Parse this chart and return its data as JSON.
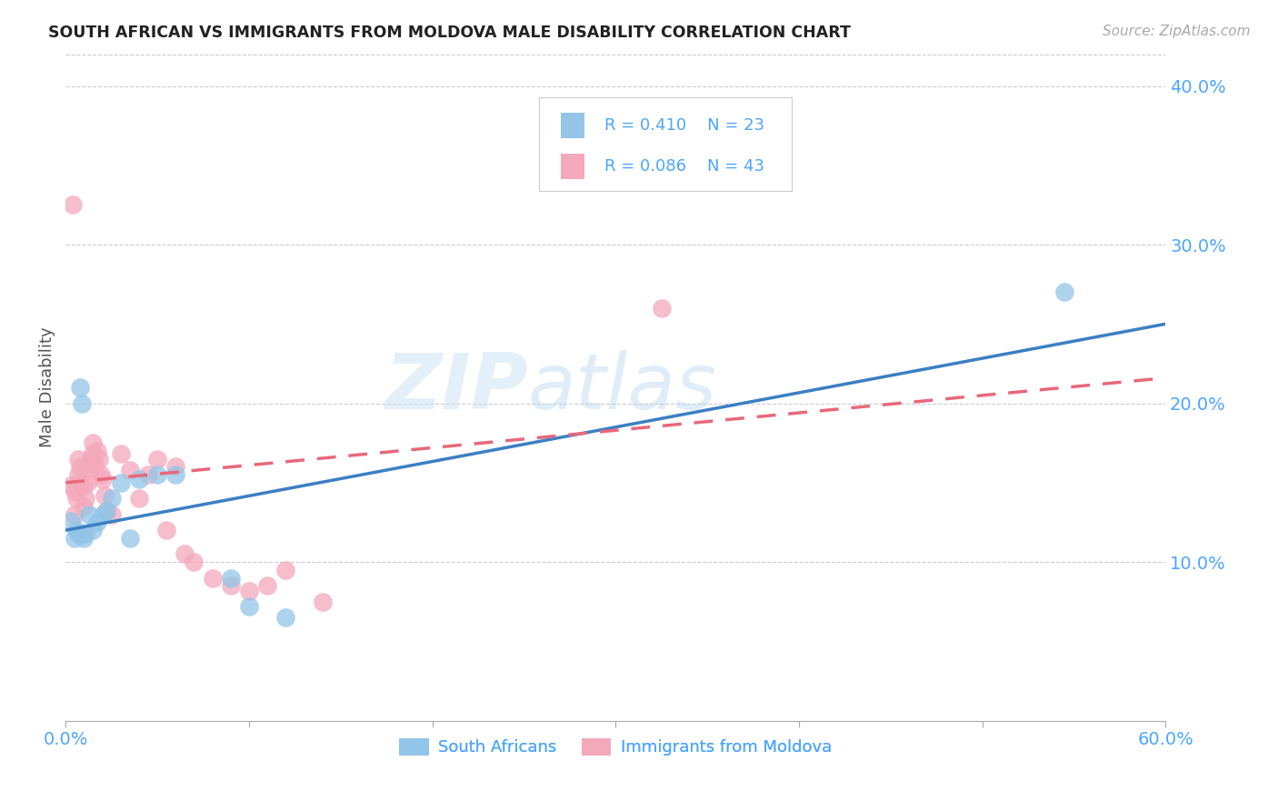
{
  "title": "SOUTH AFRICAN VS IMMIGRANTS FROM MOLDOVA MALE DISABILITY CORRELATION CHART",
  "source": "Source: ZipAtlas.com",
  "ylabel": "Male Disability",
  "legend_label1": "South Africans",
  "legend_label2": "Immigrants from Moldova",
  "legend_r1": "R = 0.410",
  "legend_n1": "N = 23",
  "legend_r2": "R = 0.086",
  "legend_n2": "N = 43",
  "xlim": [
    0.0,
    0.6
  ],
  "ylim": [
    0.0,
    0.42
  ],
  "x_ticks": [
    0.0,
    0.1,
    0.2,
    0.3,
    0.4,
    0.5,
    0.6
  ],
  "y_ticks": [
    0.1,
    0.2,
    0.3,
    0.4
  ],
  "color_blue": "#92C5E8",
  "color_pink": "#F4A8BC",
  "color_blue_line": "#3B7FC4",
  "color_pink_line": "#E8687A",
  "color_axis_labels": "#4da6ff",
  "watermark_zip": "ZIP",
  "watermark_atlas": "atlas",
  "blue_x": [
    0.003,
    0.005,
    0.006,
    0.007,
    0.008,
    0.009,
    0.01,
    0.011,
    0.013,
    0.015,
    0.017,
    0.02,
    0.022,
    0.025,
    0.03,
    0.035,
    0.04,
    0.05,
    0.06,
    0.09,
    0.1,
    0.12,
    0.545
  ],
  "blue_y": [
    0.126,
    0.115,
    0.12,
    0.118,
    0.21,
    0.2,
    0.115,
    0.118,
    0.13,
    0.12,
    0.125,
    0.13,
    0.132,
    0.14,
    0.15,
    0.115,
    0.152,
    0.155,
    0.155,
    0.09,
    0.072,
    0.065,
    0.27
  ],
  "pink_x": [
    0.003,
    0.004,
    0.005,
    0.005,
    0.006,
    0.007,
    0.007,
    0.008,
    0.008,
    0.009,
    0.01,
    0.01,
    0.011,
    0.012,
    0.012,
    0.013,
    0.014,
    0.015,
    0.015,
    0.016,
    0.017,
    0.018,
    0.019,
    0.02,
    0.021,
    0.022,
    0.025,
    0.03,
    0.035,
    0.04,
    0.045,
    0.05,
    0.055,
    0.06,
    0.065,
    0.07,
    0.08,
    0.09,
    0.1,
    0.11,
    0.12,
    0.14,
    0.325
  ],
  "pink_y": [
    0.148,
    0.325,
    0.13,
    0.145,
    0.14,
    0.155,
    0.165,
    0.15,
    0.16,
    0.118,
    0.135,
    0.148,
    0.14,
    0.15,
    0.158,
    0.162,
    0.165,
    0.168,
    0.175,
    0.162,
    0.17,
    0.165,
    0.155,
    0.152,
    0.142,
    0.132,
    0.13,
    0.168,
    0.158,
    0.14,
    0.155,
    0.165,
    0.12,
    0.16,
    0.105,
    0.1,
    0.09,
    0.085,
    0.082,
    0.085,
    0.095,
    0.075,
    0.26
  ],
  "blue_line_x0": 0.0,
  "blue_line_y0": 0.12,
  "blue_line_x1": 0.6,
  "blue_line_y1": 0.25,
  "pink_line_x0": 0.0,
  "pink_line_y0": 0.15,
  "pink_line_x1": 0.2,
  "pink_line_y1": 0.172
}
